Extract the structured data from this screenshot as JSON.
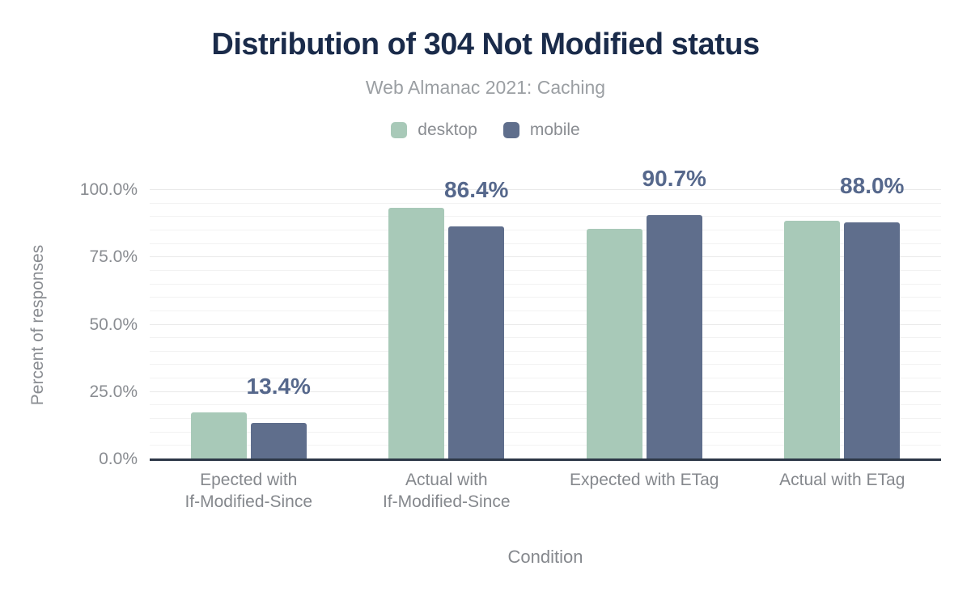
{
  "chart_data": {
    "type": "bar",
    "title": "Distribution of 304 Not Modified status",
    "subtitle": "Web Almanac 2021: Caching",
    "xlabel": "Condition",
    "ylabel": "Percent of responses",
    "categories": [
      "Epected with\nIf-Modified-Since",
      "Actual with\nIf-Modified-Since",
      "Expected with ETag",
      "Actual with ETag"
    ],
    "series": [
      {
        "name": "desktop",
        "color": "#a8c9b8",
        "values": [
          17.5,
          93.5,
          85.5,
          88.5
        ]
      },
      {
        "name": "mobile",
        "color": "#5f6e8c",
        "values": [
          13.4,
          86.4,
          90.7,
          88.0
        ]
      }
    ],
    "value_labels": [
      "13.4%",
      "86.4%",
      "90.7%",
      "88.0%"
    ],
    "value_labels_follow_series": "mobile",
    "ylim": [
      0,
      100
    ],
    "yticks": [
      {
        "value": 0,
        "label": "0.0%"
      },
      {
        "value": 25,
        "label": "25.0%"
      },
      {
        "value": 50,
        "label": "50.0%"
      },
      {
        "value": 75,
        "label": "75.0%"
      },
      {
        "value": 100,
        "label": "100.0%"
      }
    ],
    "minor_gridline_step": 5,
    "major_gridline_step": 25,
    "grid": true,
    "legend_position": "top"
  },
  "colors": {
    "title": "#1a2b4a",
    "desktop_bar": "#a8c9b8",
    "mobile_bar": "#5f6e8c",
    "value_label": "#56688c",
    "axis_line": "#2d3747",
    "tick_text": "#8a8d92",
    "minor_gridline": "#f2f2f2",
    "major_gridline": "#e9e9e9"
  }
}
